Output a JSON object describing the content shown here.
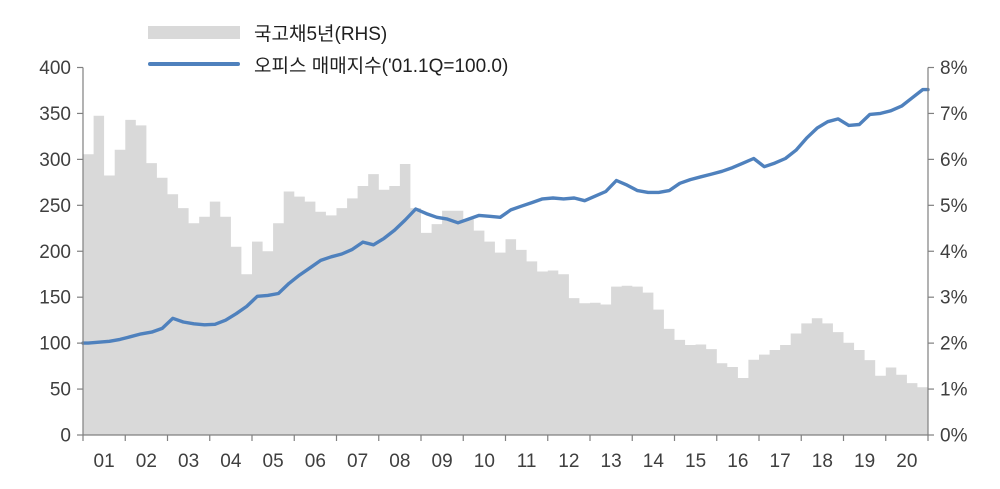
{
  "legend": {
    "items": [
      {
        "label": "국고채5년(RHS)",
        "color": "#d9d9d9",
        "marker": "area"
      },
      {
        "label": "오피스 매매지수('01.1Q=100.0)",
        "color": "#4f81bd",
        "marker": "line"
      }
    ]
  },
  "chart_data": {
    "type": "combo",
    "frequency": "quarterly",
    "x_axis": {
      "labels": [
        "01",
        "02",
        "03",
        "04",
        "05",
        "06",
        "07",
        "08",
        "09",
        "10",
        "11",
        "12",
        "13",
        "14",
        "15",
        "16",
        "17",
        "18",
        "19",
        "20"
      ],
      "points_per_label": 4
    },
    "left_axis": {
      "min": 0,
      "max": 400,
      "tick_labels": [
        "400",
        "350",
        "300",
        "250",
        "200",
        "150",
        "100",
        "50",
        "0"
      ],
      "applies_to": "오피스 매매지수('01.1Q=100.0)"
    },
    "right_axis": {
      "min": 0,
      "max": 8,
      "tick_labels": [
        "8%",
        "7%",
        "6%",
        "5%",
        "4%",
        "3%",
        "2%",
        "1%",
        "0%"
      ],
      "applies_to": "국고채5년(RHS)"
    },
    "series": [
      {
        "name": "국고채5년(RHS)",
        "type": "step-area",
        "axis": "right",
        "color": "#d9d9d9",
        "unit": "%",
        "values": [
          6.11,
          6.95,
          5.65,
          6.21,
          6.86,
          6.74,
          5.92,
          5.6,
          5.24,
          4.94,
          4.61,
          4.75,
          5.08,
          4.75,
          4.1,
          3.5,
          4.21,
          4.0,
          4.61,
          5.3,
          5.19,
          5.08,
          4.86,
          4.78,
          4.94,
          5.15,
          5.42,
          5.68,
          5.34,
          5.42,
          5.9,
          4.94,
          4.4,
          4.59,
          4.88,
          4.88,
          4.7,
          4.45,
          4.21,
          3.97,
          4.26,
          4.03,
          3.78,
          3.56,
          3.58,
          3.5,
          2.98,
          2.87,
          2.88,
          2.84,
          3.23,
          3.25,
          3.23,
          3.1,
          2.73,
          2.31,
          2.07,
          1.96,
          1.97,
          1.87,
          1.56,
          1.48,
          1.24,
          1.64,
          1.75,
          1.85,
          1.96,
          2.21,
          2.43,
          2.54,
          2.43,
          2.24,
          2.01,
          1.85,
          1.63,
          1.29,
          1.47,
          1.31,
          1.13,
          1.04
        ]
      },
      {
        "name": "오피스 매매지수('01.1Q=100.0)",
        "type": "line",
        "axis": "left",
        "color": "#4f81bd",
        "values": [
          100,
          101,
          102,
          104,
          107,
          110,
          112,
          116,
          127,
          123,
          121,
          120,
          120.5,
          125,
          132,
          140,
          151,
          152,
          154,
          165,
          174,
          182,
          190,
          194,
          197,
          202,
          210,
          207,
          214,
          223,
          234,
          246,
          241,
          237,
          235,
          231,
          235,
          239,
          238,
          237,
          245,
          249,
          253,
          257,
          258,
          257,
          258,
          255,
          260,
          265,
          277,
          272,
          266,
          264,
          264,
          266,
          274,
          278,
          281,
          284,
          287,
          291,
          296,
          301,
          292,
          296,
          301,
          310,
          323,
          334,
          341,
          344,
          337,
          338,
          349,
          350,
          353,
          358,
          367,
          376
        ]
      }
    ]
  }
}
